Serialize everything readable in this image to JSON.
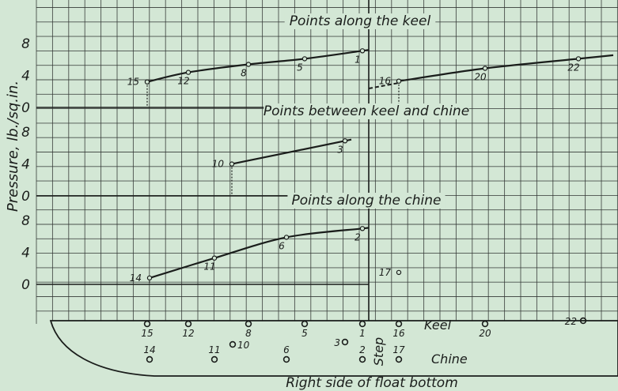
{
  "figure": {
    "y_axis_label": "Pressure, lb./sq.in.",
    "caption": "Right side of float bottom",
    "step_label": "Step",
    "keel_label": "Keel",
    "chine_label": "Chine",
    "colors": {
      "background": "#d3e7d5",
      "grid": "#323634",
      "ink": "#1a1d1b"
    }
  },
  "chart_data": [
    {
      "type": "line",
      "title": "Points along the keel",
      "ylabel": "Pressure, lb./sq.in.",
      "ylim": [
        0,
        10
      ],
      "yticks": [
        0,
        4,
        8
      ],
      "grid": true,
      "series": [
        {
          "points": [
            {
              "id": "15",
              "x": 15,
              "y": 3.2
            },
            {
              "id": "12",
              "x": 12,
              "y": 4.4
            },
            {
              "id": "8",
              "x": 8,
              "y": 5.4
            },
            {
              "id": "5",
              "x": 5,
              "y": 6.1
            },
            {
              "id": "1",
              "x": 1,
              "y": 7.1
            }
          ]
        },
        {
          "points": [
            {
              "id": "16",
              "x": 16,
              "y": 3.3
            },
            {
              "id": "20",
              "x": 20,
              "y": 4.9
            },
            {
              "id": "22",
              "x": 22,
              "y": 6.1
            }
          ]
        }
      ]
    },
    {
      "type": "line",
      "title": "Points between keel and chine",
      "ylabel": "Pressure, lb./sq.in.",
      "ylim": [
        0,
        10
      ],
      "yticks": [
        0,
        4,
        8
      ],
      "grid": true,
      "series": [
        {
          "points": [
            {
              "id": "10",
              "x": 10,
              "y": 4.0
            },
            {
              "id": "3",
              "x": 3,
              "y": 6.9
            }
          ]
        }
      ]
    },
    {
      "type": "line",
      "title": "Points along the chine",
      "ylabel": "Pressure, lb./sq.in.",
      "ylim": [
        0,
        10
      ],
      "yticks": [
        0,
        4,
        8
      ],
      "grid": true,
      "series": [
        {
          "points": [
            {
              "id": "14",
              "x": 14,
              "y": 0.8
            },
            {
              "id": "11",
              "x": 11,
              "y": 3.3
            },
            {
              "id": "6",
              "x": 6,
              "y": 5.9
            },
            {
              "id": "2",
              "x": 2,
              "y": 7.0
            }
          ]
        },
        {
          "points": [
            {
              "id": "17",
              "x": 17,
              "y": 1.5
            }
          ]
        }
      ]
    }
  ],
  "hull_points": [
    {
      "id": "15"
    },
    {
      "id": "12"
    },
    {
      "id": "8"
    },
    {
      "id": "5"
    },
    {
      "id": "1"
    },
    {
      "id": "16"
    },
    {
      "id": "20"
    },
    {
      "id": "22"
    },
    {
      "id": "14"
    },
    {
      "id": "11"
    },
    {
      "id": "10"
    },
    {
      "id": "6"
    },
    {
      "id": "3"
    },
    {
      "id": "2"
    },
    {
      "id": "17"
    }
  ]
}
